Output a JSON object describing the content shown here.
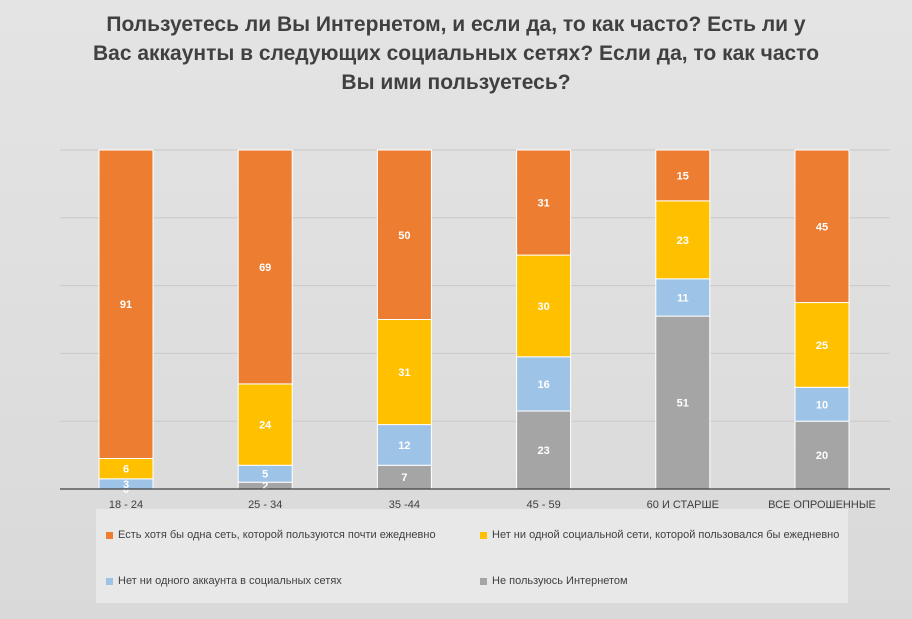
{
  "chart_data": {
    "type": "bar",
    "stacked": true,
    "title": "Пользуетесь ли Вы Интернетом, и если да, то как часто? Есть ли у Вас аккаунты в следующих социальных сетях? Если да, то как часто Вы ими пользуетесь?",
    "title_lines": [
      "Пользуетесь ли Вы Интернетом, и если да, то как часто? Есть ли у",
      "Вас аккаунты в следующих социальных сетях? Если да, то как часто",
      "Вы ими пользуетесь?"
    ],
    "categories": [
      "18 - 24",
      "25 - 34",
      "35 -44",
      "45 - 59",
      "60 И СТАРШЕ",
      "ВСЕ ОПРОШЕННЫЕ"
    ],
    "series": [
      {
        "name": "Не пользуюсь Интернетом",
        "color": "#a5a5a5",
        "values": [
          0,
          2,
          7,
          23,
          51,
          20
        ]
      },
      {
        "name": "Нет ни одного аккаунта в социальных сетях",
        "color": "#9dc3e6",
        "values": [
          3,
          5,
          12,
          16,
          11,
          10
        ]
      },
      {
        "name": "Нет ни одной социальной сети, которой пользовался бы ежедневно",
        "color": "#ffc000",
        "values": [
          6,
          24,
          31,
          30,
          23,
          25
        ]
      },
      {
        "name": "Есть хотя бы одна сеть, которой пользуются почти ежедневно",
        "color": "#ed7d31",
        "values": [
          91,
          69,
          50,
          31,
          15,
          45
        ]
      }
    ],
    "data_labels": [
      [
        "0",
        "2",
        "7",
        "23",
        "51",
        "20"
      ],
      [
        "3",
        "5",
        "12",
        "16",
        "11",
        "10"
      ],
      [
        "6",
        "24",
        "31",
        "30",
        "23",
        "25"
      ],
      [
        "91",
        "69",
        "50",
        "31",
        "15",
        "45"
      ]
    ],
    "ylim": [
      0,
      100
    ],
    "grid": true,
    "legend_position": "bottom",
    "legend_order": [
      3,
      2,
      1,
      0
    ]
  }
}
